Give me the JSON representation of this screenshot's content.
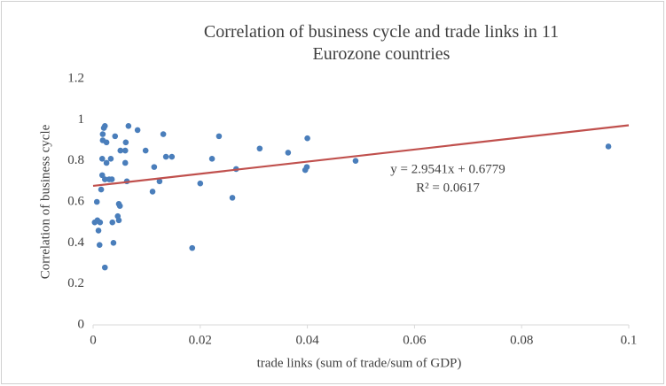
{
  "chart_data": {
    "type": "scatter",
    "title": "Correlation of business cycle and trade links in 11 Eurozone countries",
    "x_label": "trade links (sum of trade/sum of GDP)",
    "y_label": "Correlation of business cycle",
    "xlim": [
      0,
      0.1
    ],
    "ylim": [
      0,
      1.2
    ],
    "xticks": [
      0,
      0.02,
      0.04,
      0.06,
      0.08,
      0.1
    ],
    "yticks": [
      0,
      0.2,
      0.4,
      0.6,
      0.8,
      1,
      1.2
    ],
    "grid": false,
    "series": [
      {
        "color": "#4a7ebb",
        "x": [
          0.0003,
          0.0007,
          0.0008,
          0.001,
          0.0012,
          0.0013,
          0.0015,
          0.0017,
          0.0017,
          0.0018,
          0.0018,
          0.002,
          0.0022,
          0.0022,
          0.0022,
          0.0025,
          0.0025,
          0.003,
          0.0033,
          0.0035,
          0.0036,
          0.0038,
          0.0041,
          0.0046,
          0.0048,
          0.0048,
          0.005,
          0.0051,
          0.006,
          0.0061,
          0.006,
          0.0063,
          0.0066,
          0.0083,
          0.0098,
          0.0111,
          0.0114,
          0.0124,
          0.0131,
          0.0136,
          0.0147,
          0.0185,
          0.02,
          0.0222,
          0.0235,
          0.026,
          0.0267,
          0.0311,
          0.0364,
          0.0396,
          0.0399,
          0.04,
          0.049,
          0.0962
        ],
        "values": [
          0.5,
          0.6,
          0.51,
          0.46,
          0.39,
          0.5,
          0.66,
          0.81,
          0.73,
          0.9,
          0.93,
          0.96,
          0.97,
          0.71,
          0.28,
          0.89,
          0.79,
          0.71,
          0.81,
          0.71,
          0.5,
          0.4,
          0.92,
          0.53,
          0.51,
          0.59,
          0.58,
          0.85,
          0.85,
          0.89,
          0.79,
          0.7,
          0.97,
          0.95,
          0.85,
          0.65,
          0.77,
          0.7,
          0.93,
          0.82,
          0.82,
          0.375,
          0.69,
          0.81,
          0.92,
          0.62,
          0.76,
          0.86,
          0.84,
          0.755,
          0.77,
          0.91,
          0.8,
          0.87
        ]
      }
    ],
    "trendline": {
      "slope": 2.9541,
      "intercept": 0.6779,
      "color": "#c0504d"
    },
    "annotations": [
      "y = 2.9541x + 0.6779",
      "R² = 0.0617"
    ]
  }
}
